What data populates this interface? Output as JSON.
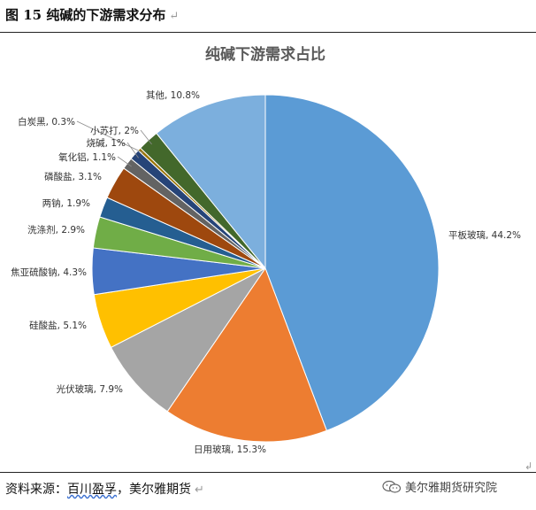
{
  "figure": {
    "title": "图 15  纯碱的下游需求分布",
    "return_mark": "↵"
  },
  "chart_data": {
    "type": "pie",
    "title": "纯碱下游需求占比",
    "start_angle_deg": 0,
    "direction": "clockwise",
    "slices": [
      {
        "label": "平板玻璃",
        "value": 44.2,
        "text": "平板玻璃, 44.2%",
        "color": "#5B9BD5"
      },
      {
        "label": "日用玻璃",
        "value": 15.3,
        "text": "日用玻璃, 15.3%",
        "color": "#ED7D31"
      },
      {
        "label": "光伏玻璃",
        "value": 7.9,
        "text": "光伏玻璃, 7.9%",
        "color": "#A5A5A5"
      },
      {
        "label": "硅酸盐",
        "value": 5.1,
        "text": "硅酸盐, 5.1%",
        "color": "#FFC000"
      },
      {
        "label": "焦亚硫酸钠",
        "value": 4.3,
        "text": "焦亚硫酸钠, 4.3%",
        "color": "#4472C4"
      },
      {
        "label": "洗涤剂",
        "value": 2.9,
        "text": "洗涤剂, 2.9%",
        "color": "#70AD47"
      },
      {
        "label": "两钠",
        "value": 1.9,
        "text": "两钠, 1.9%",
        "color": "#255E91"
      },
      {
        "label": "磷酸盐",
        "value": 3.1,
        "text": "磷酸盐, 3.1%",
        "color": "#9E480E"
      },
      {
        "label": "氧化铝",
        "value": 1.1,
        "text": "氧化铝, 1.1%",
        "color": "#636363"
      },
      {
        "label": "烧碱",
        "value": 1.0,
        "text": "烧碱, 1%",
        "color": "#264478"
      },
      {
        "label": "白炭黑",
        "value": 0.3,
        "text": "白炭黑, 0.3%",
        "color": "#997300"
      },
      {
        "label": "小苏打",
        "value": 2.0,
        "text": "小苏打, 2%",
        "color": "#43682B"
      },
      {
        "label": "其他",
        "value": 10.8,
        "text": "其他, 10.8%",
        "color": "#7CAFDD"
      }
    ]
  },
  "source": {
    "prefix": "资料来源：",
    "names": "百川盈孚",
    "rest": "，美尔雅期货",
    "return_mark": "↵"
  },
  "watermark": {
    "text": "美尔雅期货研究院",
    "icon": "wechat-icon"
  },
  "edge_mark": "↲"
}
